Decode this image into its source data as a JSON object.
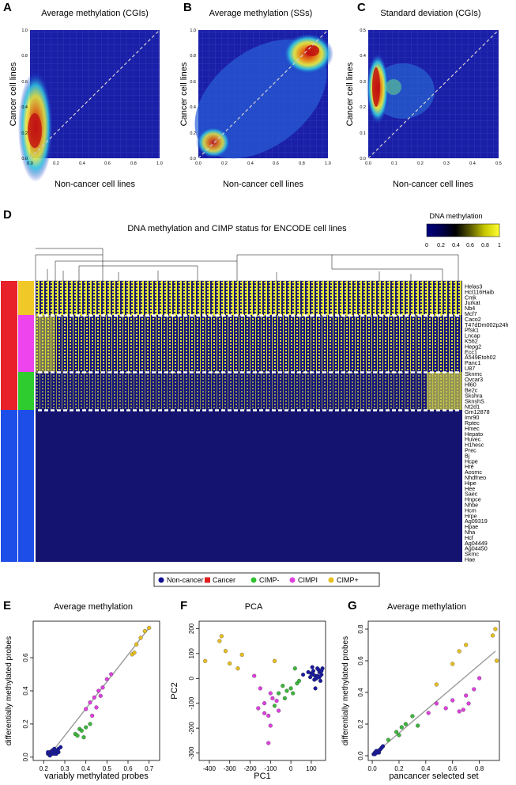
{
  "panels": {
    "A": {
      "letter": "A",
      "title": "Average methylation (CGIs)",
      "xlabel": "Non-cancer cell lines",
      "ylabel": "Cancer cell lines",
      "xticks": [
        "0.0",
        "0.2",
        "0.4",
        "0.6",
        "0.8",
        "1.0"
      ],
      "yticks": [
        "0.0",
        "0.2",
        "0.4",
        "0.6",
        "0.8",
        "1.0"
      ]
    },
    "B": {
      "letter": "B",
      "title": "Average methylation (SSs)",
      "xlabel": "Non-cancer cell lines",
      "ylabel": "Cancer cell lines",
      "xticks": [
        "0.0",
        "0.2",
        "0.4",
        "0.6",
        "0.8",
        "1.0"
      ],
      "yticks": [
        "0.0",
        "0.2",
        "0.4",
        "0.6",
        "0.8",
        "1.0"
      ]
    },
    "C": {
      "letter": "C",
      "title": "Standard deviation (CGIs)",
      "xlabel": "Non-cancer cell lines",
      "ylabel": "Cancer cell lines",
      "xticks": [
        "0.0",
        "0.1",
        "0.2",
        "0.3",
        "0.4",
        "0.5"
      ],
      "yticks": [
        "0.0",
        "0.1",
        "0.2",
        "0.3",
        "0.4",
        "0.5"
      ]
    },
    "D": {
      "letter": "D",
      "title": "DNA methylation and CIMP status for ENCODE cell lines",
      "colorbar_title": "DNA methylation",
      "colorbar_ticks": [
        "0",
        "0.2",
        "0.4",
        "0.6",
        "0.8",
        "1"
      ],
      "colorbar_colors": [
        "#00007f",
        "#000050",
        "#000000",
        "#5a5a00",
        "#c8c800",
        "#ffff33"
      ]
    },
    "E": {
      "letter": "E",
      "title": "Average methylation",
      "xlabel": "variably methylated probes",
      "ylabel": "differentially methylated probes",
      "xticks": [
        "0.2",
        "0.3",
        "0.4",
        "0.5",
        "0.6",
        "0.7"
      ],
      "yticks": [
        "0.0",
        "0.2",
        "0.4",
        "0.6"
      ]
    },
    "F": {
      "letter": "F",
      "title": "PCA",
      "xlabel": "PC1",
      "ylabel": "PC2",
      "xticks": [
        "-400",
        "-300",
        "-200",
        "-100",
        "0",
        "100"
      ],
      "yticks": [
        "200",
        "100",
        "0",
        "-100",
        "-200",
        "-300"
      ]
    },
    "G": {
      "letter": "G",
      "title": "Average methylation",
      "xlabel": "pancancer selected set",
      "ylabel": "differentially methylated probes",
      "xticks": [
        "0.0",
        "0.2",
        "0.4",
        "0.6",
        "0.8"
      ],
      "yticks": [
        "0.0",
        "0.2",
        "0.4",
        "0.6",
        "0.8"
      ]
    }
  },
  "cell_lines": [
    "Helas3",
    "Hct116Haib",
    "Cmk",
    "Jurkat",
    "Nb4",
    "Mcf7",
    "Caco2",
    "T47dDm002p24h",
    "Pfsk1",
    "Lncap",
    "K562",
    "Hepg2",
    "Ecc1",
    "A549Etoh02",
    "Panc1",
    "U87",
    "Sknmc",
    "Ovcar3",
    "Hl60",
    "Be2c",
    "Skshra",
    "SknshS",
    "Nt2d1",
    "Gm12878",
    "Imr90",
    "Rptec",
    "Hmec",
    "Hepato",
    "Huvec",
    "H1hesc",
    "Prec",
    "Bj",
    "Hcpe",
    "Hre",
    "Aosmc",
    "Nhdfneo",
    "Hipe",
    "Hee",
    "Saec",
    "Hnpce",
    "Nhbe",
    "Hcm",
    "Hrpe",
    "Ag09319",
    "Hpae",
    "Nha",
    "Hcf",
    "Ag04449",
    "Ag04450",
    "Skmc",
    "Hae"
  ],
  "legend": [
    {
      "label": "Non-cancer",
      "color": "#101090"
    },
    {
      "label": "Cancer",
      "color": "#e02020"
    },
    {
      "label": "CIMP-",
      "color": "#30c030"
    },
    {
      "label": "CIMPI",
      "color": "#e040e0"
    },
    {
      "label": "CIMP+",
      "color": "#e8c020"
    }
  ],
  "groups_colors": {
    "Non-cancer": "#1e4ee8",
    "Cancer": "#e8202a",
    "CIMP-": "#2ecc2e",
    "CIMPI": "#ee44ee",
    "CIMP+": "#f0c828"
  },
  "chart_data": [
    {
      "type": "scatter",
      "panel": "E",
      "title": "Average methylation",
      "xlabel": "variably methylated probes",
      "ylabel": "differentially methylated probes",
      "xlim": [
        0.15,
        0.75
      ],
      "ylim": [
        -0.02,
        0.82
      ],
      "series": [
        {
          "name": "Non-cancer",
          "points": [
            [
              0.22,
              0.02
            ],
            [
              0.23,
              0.03
            ],
            [
              0.24,
              0.02
            ],
            [
              0.24,
              0.04
            ],
            [
              0.25,
              0.03
            ],
            [
              0.25,
              0.05
            ],
            [
              0.26,
              0.04
            ],
            [
              0.27,
              0.05
            ],
            [
              0.23,
              0.01
            ],
            [
              0.26,
              0.02
            ],
            [
              0.24,
              0.03
            ],
            [
              0.25,
              0.02
            ],
            [
              0.22,
              0.03
            ],
            [
              0.27,
              0.03
            ],
            [
              0.28,
              0.06
            ]
          ]
        },
        {
          "name": "CIMP-",
          "points": [
            [
              0.35,
              0.14
            ],
            [
              0.37,
              0.17
            ],
            [
              0.38,
              0.16
            ],
            [
              0.4,
              0.18
            ],
            [
              0.36,
              0.13
            ],
            [
              0.42,
              0.2
            ],
            [
              0.39,
              0.12
            ]
          ]
        },
        {
          "name": "CIMPI",
          "points": [
            [
              0.4,
              0.29
            ],
            [
              0.42,
              0.33
            ],
            [
              0.44,
              0.36
            ],
            [
              0.46,
              0.4
            ],
            [
              0.48,
              0.42
            ],
            [
              0.45,
              0.3
            ],
            [
              0.5,
              0.47
            ],
            [
              0.47,
              0.37
            ],
            [
              0.43,
              0.25
            ],
            [
              0.52,
              0.5
            ]
          ]
        },
        {
          "name": "CIMP+",
          "points": [
            [
              0.62,
              0.62
            ],
            [
              0.64,
              0.68
            ],
            [
              0.66,
              0.72
            ],
            [
              0.68,
              0.76
            ],
            [
              0.7,
              0.78
            ],
            [
              0.63,
              0.63
            ]
          ]
        }
      ],
      "fit_line": [
        [
          0.22,
          0.0
        ],
        [
          0.7,
          0.78
        ]
      ]
    },
    {
      "type": "scatter",
      "panel": "F",
      "title": "PCA",
      "xlabel": "PC1",
      "ylabel": "PC2",
      "xlim": [
        -450,
        170
      ],
      "ylim": [
        -330,
        230
      ],
      "series": [
        {
          "name": "Non-cancer",
          "points": [
            [
              100,
              20
            ],
            [
              110,
              30
            ],
            [
              120,
              10
            ],
            [
              130,
              40
            ],
            [
              140,
              25
            ],
            [
              150,
              15
            ],
            [
              115,
              -5
            ],
            [
              125,
              0
            ],
            [
              135,
              35
            ],
            [
              105,
              45
            ],
            [
              95,
              5
            ],
            [
              145,
              -10
            ],
            [
              155,
              40
            ],
            [
              85,
              25
            ],
            [
              60,
              15
            ],
            [
              120,
              -40
            ],
            [
              130,
              10
            ],
            [
              140,
              5
            ],
            [
              110,
              15
            ],
            [
              150,
              30
            ]
          ]
        },
        {
          "name": "CIMP-",
          "points": [
            [
              -60,
              -60
            ],
            [
              -40,
              -30
            ],
            [
              -20,
              -50
            ],
            [
              0,
              -40
            ],
            [
              10,
              -60
            ],
            [
              30,
              -20
            ],
            [
              -80,
              -110
            ],
            [
              -30,
              -80
            ],
            [
              20,
              40
            ],
            [
              40,
              -10
            ]
          ]
        },
        {
          "name": "CIMPI",
          "points": [
            [
              -180,
              10
            ],
            [
              -150,
              -40
            ],
            [
              -130,
              -100
            ],
            [
              -110,
              -150
            ],
            [
              -100,
              -60
            ],
            [
              -90,
              -80
            ],
            [
              -110,
              -260
            ],
            [
              -60,
              -130
            ],
            [
              -130,
              -140
            ],
            [
              -100,
              -190
            ],
            [
              -70,
              -90
            ],
            [
              -160,
              -120
            ]
          ]
        },
        {
          "name": "CIMP+",
          "points": [
            [
              -420,
              70
            ],
            [
              -350,
              150
            ],
            [
              -320,
              110
            ],
            [
              -300,
              60
            ],
            [
              -260,
              40
            ],
            [
              -340,
              170
            ],
            [
              -240,
              95
            ],
            [
              -80,
              70
            ]
          ]
        }
      ]
    },
    {
      "type": "scatter",
      "panel": "G",
      "title": "Average methylation",
      "xlabel": "pancancer selected set",
      "ylabel": "differentially methylated probes",
      "xlim": [
        -0.03,
        0.95
      ],
      "ylim": [
        -0.03,
        0.85
      ],
      "series": [
        {
          "name": "Non-cancer",
          "points": [
            [
              0.01,
              0.01
            ],
            [
              0.02,
              0.02
            ],
            [
              0.03,
              0.02
            ],
            [
              0.04,
              0.03
            ],
            [
              0.05,
              0.03
            ],
            [
              0.06,
              0.04
            ],
            [
              0.07,
              0.05
            ],
            [
              0.02,
              0.01
            ],
            [
              0.03,
              0.03
            ],
            [
              0.05,
              0.02
            ],
            [
              0.08,
              0.06
            ],
            [
              0.04,
              0.02
            ]
          ]
        },
        {
          "name": "CIMP-",
          "points": [
            [
              0.12,
              0.1
            ],
            [
              0.18,
              0.15
            ],
            [
              0.2,
              0.13
            ],
            [
              0.22,
              0.18
            ],
            [
              0.25,
              0.2
            ],
            [
              0.3,
              0.25
            ],
            [
              0.34,
              0.19
            ]
          ]
        },
        {
          "name": "CIMPI",
          "points": [
            [
              0.42,
              0.27
            ],
            [
              0.48,
              0.33
            ],
            [
              0.55,
              0.3
            ],
            [
              0.6,
              0.35
            ],
            [
              0.65,
              0.28
            ],
            [
              0.68,
              0.29
            ],
            [
              0.72,
              0.33
            ],
            [
              0.76,
              0.42
            ],
            [
              0.8,
              0.49
            ],
            [
              0.7,
              0.38
            ]
          ]
        },
        {
          "name": "CIMP+",
          "points": [
            [
              0.6,
              0.58
            ],
            [
              0.65,
              0.66
            ],
            [
              0.7,
              0.7
            ],
            [
              0.9,
              0.76
            ],
            [
              0.92,
              0.8
            ],
            [
              0.93,
              0.6
            ],
            [
              0.48,
              0.45
            ]
          ]
        }
      ],
      "fit_line": [
        [
          0.0,
          0.0
        ],
        [
          0.92,
          0.66
        ]
      ]
    }
  ]
}
